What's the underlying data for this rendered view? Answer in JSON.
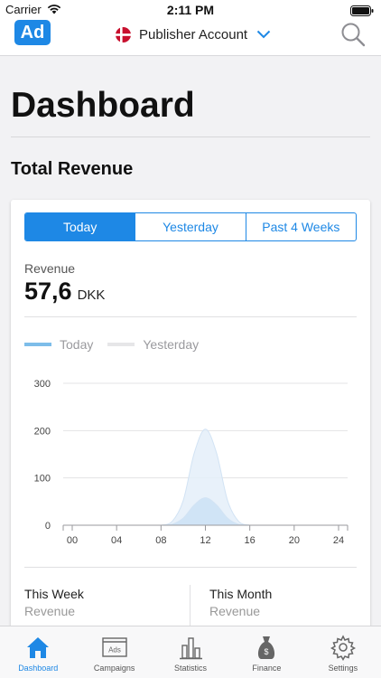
{
  "status_bar": {
    "carrier": "Carrier",
    "time": "2:11 PM"
  },
  "navbar": {
    "logo_text": "Ad",
    "account_label": "Publisher Account"
  },
  "page": {
    "title": "Dashboard",
    "section_title": "Total Revenue"
  },
  "revenue_card": {
    "tabs": [
      {
        "label": "Today",
        "active": true
      },
      {
        "label": "Yesterday",
        "active": false
      },
      {
        "label": "Past 4 Weeks",
        "active": false
      }
    ],
    "revenue_label": "Revenue",
    "revenue_value": "57,6",
    "revenue_currency": "DKK",
    "legend": [
      {
        "name": "Today",
        "color": "#7dbde9"
      },
      {
        "name": "Yesterday",
        "color": "#e6e6e8"
      }
    ]
  },
  "chart_data": {
    "type": "area",
    "x": [
      "00",
      "01",
      "02",
      "03",
      "04",
      "05",
      "06",
      "07",
      "08",
      "09",
      "10",
      "11",
      "12",
      "13",
      "14",
      "15",
      "16",
      "17",
      "18",
      "19",
      "20",
      "21",
      "22",
      "23",
      "24"
    ],
    "xticks": [
      "00",
      "04",
      "08",
      "12",
      "16",
      "20",
      "24"
    ],
    "yticks": [
      0,
      100,
      200,
      300
    ],
    "ylim": [
      0,
      300
    ],
    "series": [
      {
        "name": "Today",
        "color": "#cfe3f6",
        "values": [
          0,
          0,
          0,
          0,
          0,
          0,
          0,
          0,
          0,
          2,
          15,
          43,
          58,
          43,
          15,
          2,
          0,
          0,
          0,
          0,
          0,
          0,
          0,
          0,
          0
        ]
      },
      {
        "name": "Yesterday",
        "color": "#e4eef9",
        "values": [
          0,
          0,
          0,
          0,
          0,
          0,
          0,
          0,
          0,
          8,
          52,
          153,
          203,
          153,
          52,
          8,
          0,
          0,
          0,
          0,
          0,
          0,
          0,
          0,
          0
        ]
      }
    ]
  },
  "summary": {
    "left": {
      "title": "This Week",
      "subtitle": "Revenue"
    },
    "right": {
      "title": "This Month",
      "subtitle": "Revenue"
    }
  },
  "tabbar": {
    "accent": "#1e88e5",
    "items": [
      {
        "label": "Dashboard",
        "icon": "house-icon",
        "active": true
      },
      {
        "label": "Campaigns",
        "icon": "ads-window-icon",
        "active": false,
        "icon_text": "Ads"
      },
      {
        "label": "Statistics",
        "icon": "bar-chart-icon",
        "active": false
      },
      {
        "label": "Finance",
        "icon": "money-bag-icon",
        "active": false,
        "icon_text": "$"
      },
      {
        "label": "Settings",
        "icon": "gear-icon",
        "active": false
      }
    ]
  }
}
